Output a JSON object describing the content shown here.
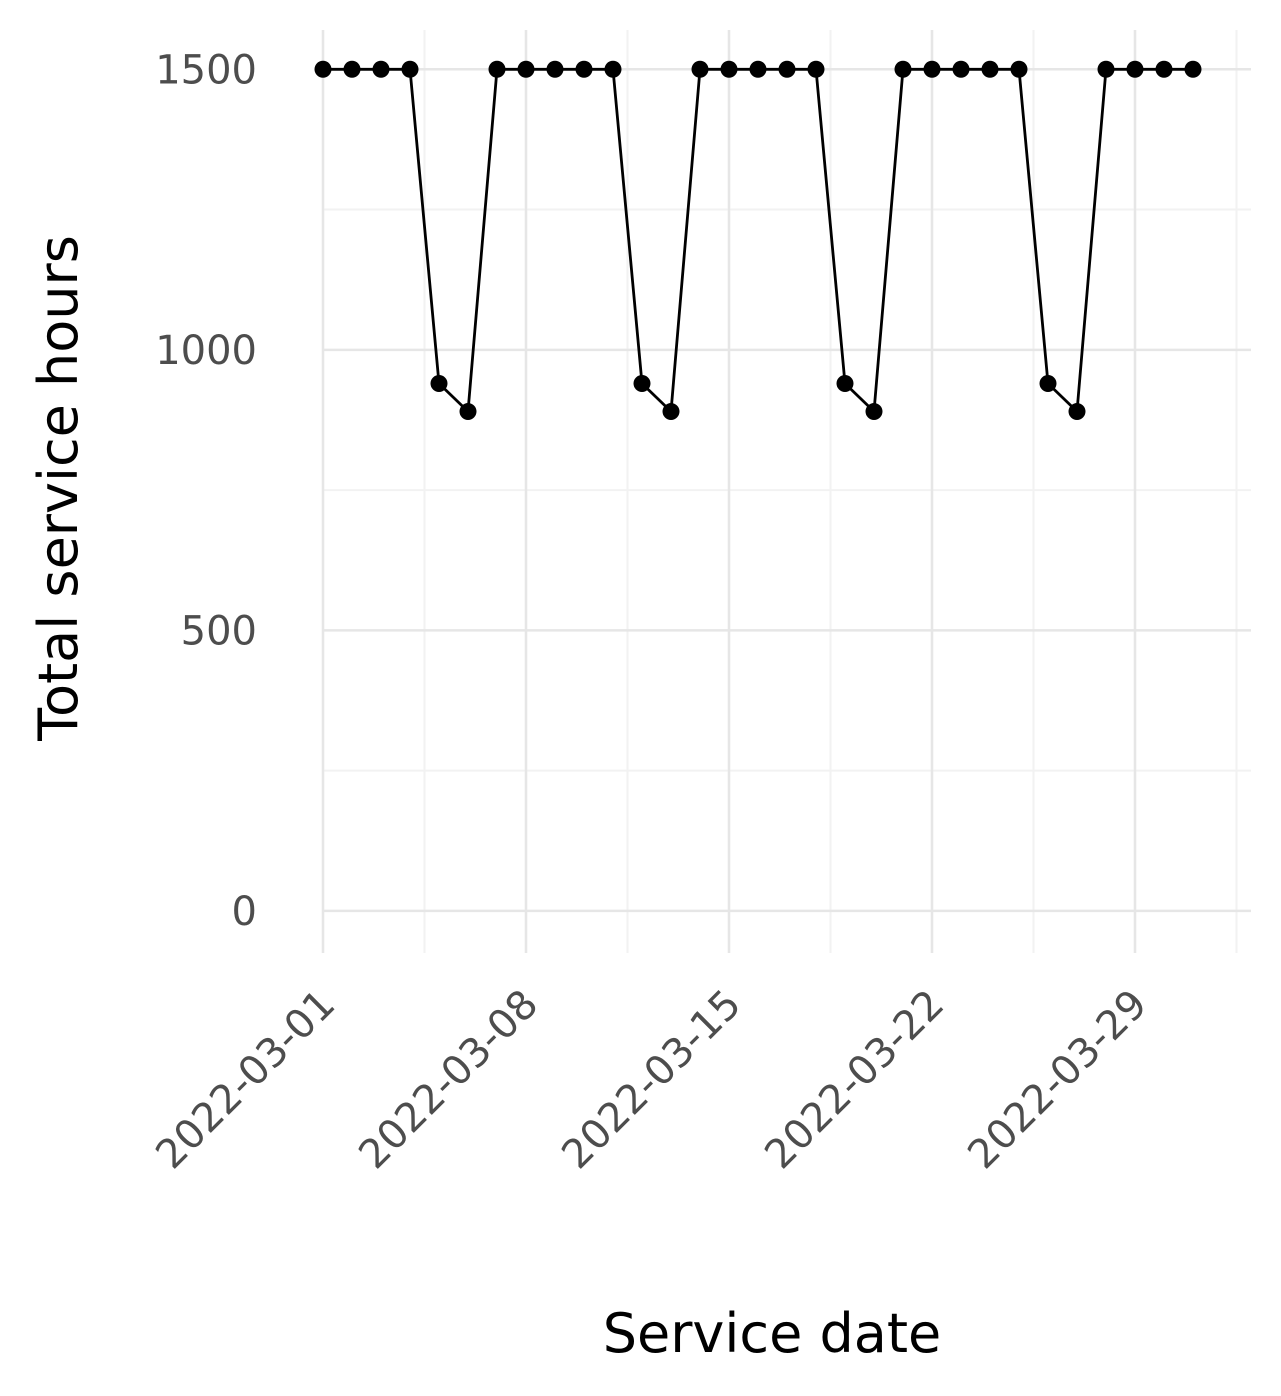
{
  "chart_data": {
    "type": "line",
    "title": "",
    "xlabel": "Service date",
    "ylabel": "Total service hours",
    "x_ticks": [
      "2022-03-01",
      "2022-03-08",
      "2022-03-15",
      "2022-03-22",
      "2022-03-29"
    ],
    "y_ticks": [
      0,
      500,
      1000,
      1500
    ],
    "ylim": [
      -75,
      1570
    ],
    "xlim": [
      "2022-02-29",
      "2022-04-02"
    ],
    "grid": true,
    "legend": "none",
    "line_color": "#000000",
    "series": [
      {
        "x": [
          "2022-03-01",
          "2022-03-02",
          "2022-03-03",
          "2022-03-04",
          "2022-03-05",
          "2022-03-06",
          "2022-03-07",
          "2022-03-08",
          "2022-03-09",
          "2022-03-10",
          "2022-03-11",
          "2022-03-12",
          "2022-03-13",
          "2022-03-14",
          "2022-03-15",
          "2022-03-16",
          "2022-03-17",
          "2022-03-18",
          "2022-03-19",
          "2022-03-20",
          "2022-03-21",
          "2022-03-22",
          "2022-03-23",
          "2022-03-24",
          "2022-03-25",
          "2022-03-26",
          "2022-03-27",
          "2022-03-28",
          "2022-03-29",
          "2022-03-30",
          "2022-03-31"
        ],
        "values": [
          1500,
          1500,
          1500,
          1500,
          940,
          890,
          1500,
          1500,
          1500,
          1500,
          1500,
          940,
          890,
          1500,
          1500,
          1500,
          1500,
          1500,
          940,
          890,
          1500,
          1500,
          1500,
          1500,
          1500,
          940,
          890,
          1500,
          1500,
          1500,
          1500
        ]
      }
    ]
  }
}
